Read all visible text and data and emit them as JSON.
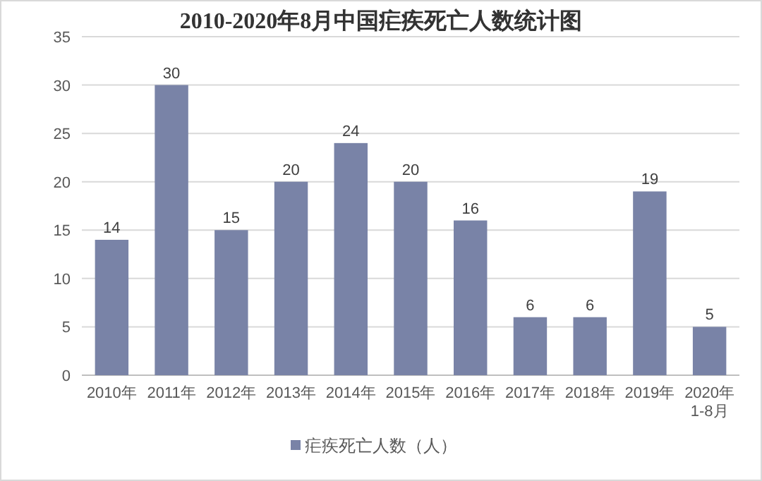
{
  "chart_data": {
    "type": "bar",
    "title": "2010-2020年8月中国疟疾死亡人数统计图",
    "categories": [
      "2010年",
      "2011年",
      "2012年",
      "2013年",
      "2014年",
      "2015年",
      "2016年",
      "2017年",
      "2018年",
      "2019年",
      "2020年1-8月"
    ],
    "series": [
      {
        "name": "疟疾死亡人数（人）",
        "color": "#7983a7",
        "values": [
          14,
          30,
          15,
          20,
          24,
          20,
          16,
          6,
          6,
          19,
          5
        ]
      }
    ],
    "ylim": [
      0,
      35
    ],
    "yticks": [
      0,
      5,
      10,
      15,
      20,
      25,
      30,
      35
    ],
    "grid": "y",
    "legend": "bottom",
    "data_labels": true
  }
}
